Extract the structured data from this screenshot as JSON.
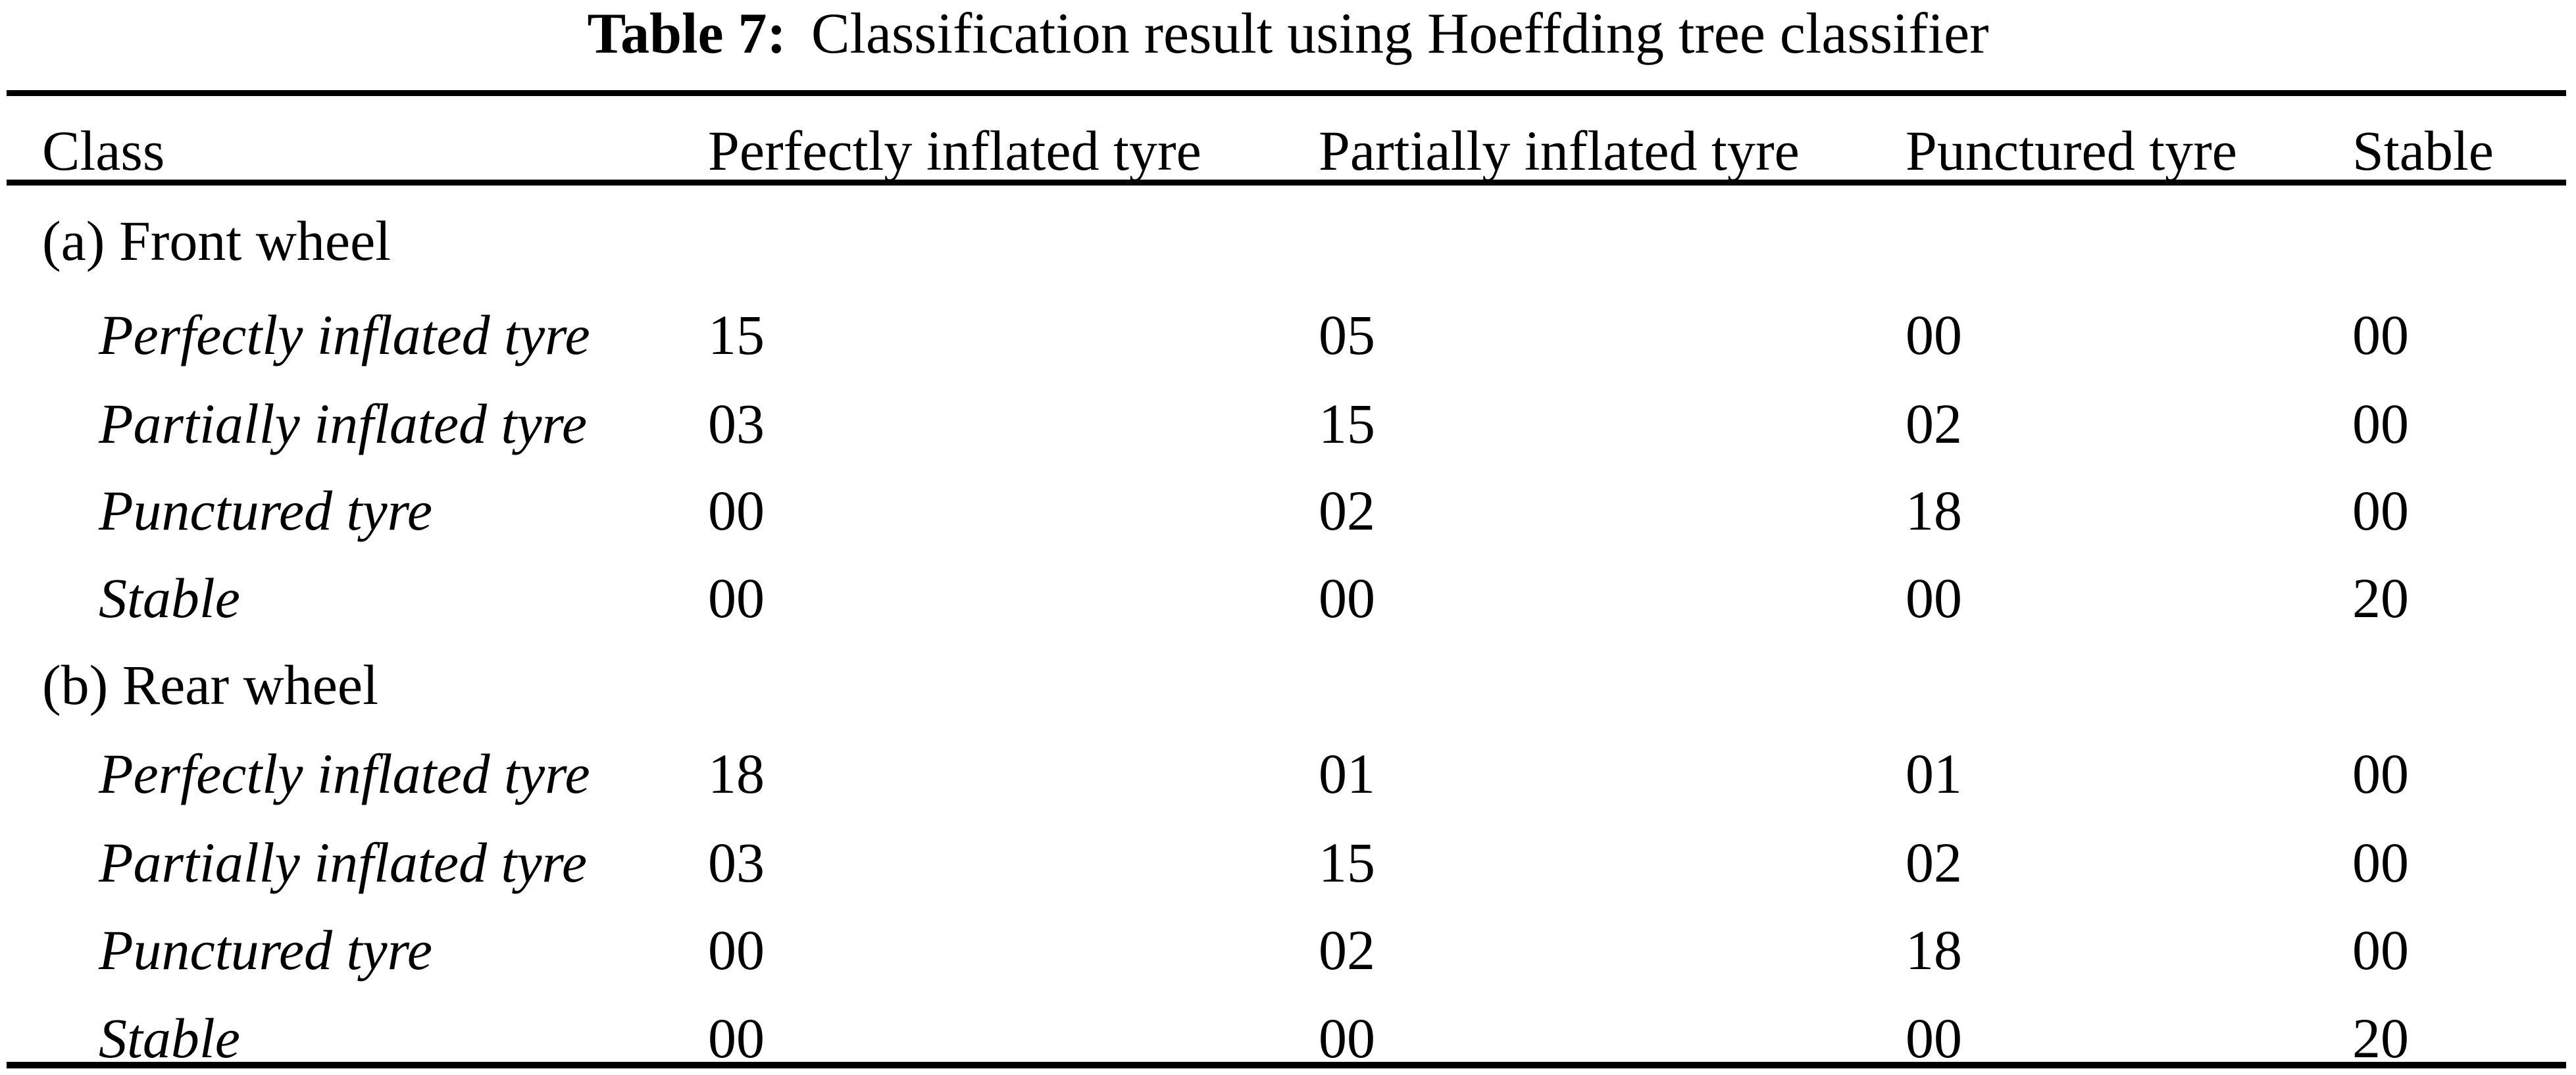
{
  "caption": {
    "label": "Table 7:",
    "text": "Classification result using Hoeffding tree classifier"
  },
  "table": {
    "columns": [
      "Class",
      "Perfectly inflated tyre",
      "Partially inflated tyre",
      "Punctured tyre",
      "Stable"
    ],
    "sections": [
      {
        "header": "(a) Front wheel",
        "rows": [
          {
            "label": "Perfectly inflated tyre",
            "values": [
              "15",
              "05",
              "00",
              "00"
            ]
          },
          {
            "label": "Partially inflated tyre",
            "values": [
              "03",
              "15",
              "02",
              "00"
            ]
          },
          {
            "label": "Punctured tyre",
            "values": [
              "00",
              "02",
              "18",
              "00"
            ]
          },
          {
            "label": "Stable",
            "values": [
              "00",
              "00",
              "00",
              "20"
            ]
          }
        ]
      },
      {
        "header": "(b) Rear wheel",
        "rows": [
          {
            "label": "Perfectly inflated tyre",
            "values": [
              "18",
              "01",
              "01",
              "00"
            ]
          },
          {
            "label": "Partially inflated tyre",
            "values": [
              "03",
              "15",
              "02",
              "00"
            ]
          },
          {
            "label": "Punctured tyre",
            "values": [
              "00",
              "02",
              "18",
              "00"
            ]
          },
          {
            "label": "Stable",
            "values": [
              "00",
              "00",
              "00",
              "20"
            ]
          }
        ]
      }
    ]
  },
  "colors": {
    "text": "#000000",
    "background": "#ffffff",
    "rule": "#000000"
  }
}
